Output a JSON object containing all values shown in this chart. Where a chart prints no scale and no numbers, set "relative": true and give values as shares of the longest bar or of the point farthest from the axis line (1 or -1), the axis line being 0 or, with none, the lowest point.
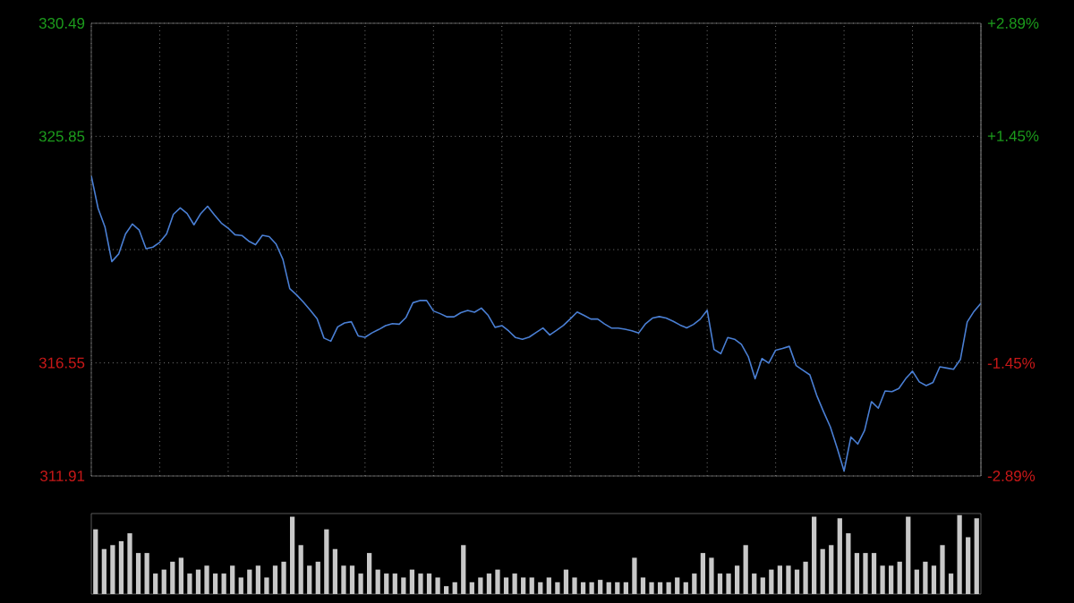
{
  "chart_data": [
    {
      "type": "line",
      "color": "#4a7fd4",
      "categories": [
        null,
        null,
        null,
        null,
        null,
        null,
        null,
        null,
        null,
        null,
        null,
        null,
        null,
        null,
        null,
        null,
        null,
        null,
        null,
        null,
        null,
        null,
        null,
        null,
        null,
        null,
        null,
        null,
        null,
        null,
        null,
        null,
        null,
        null,
        null,
        null,
        null,
        null,
        null,
        null,
        null,
        null,
        null,
        null,
        null,
        null,
        null,
        null,
        null,
        null,
        null,
        null,
        null,
        null,
        null,
        null,
        null,
        null,
        null,
        null,
        null,
        null,
        null,
        null,
        null,
        null,
        null,
        null,
        null,
        null,
        null,
        null,
        null,
        null,
        null,
        null,
        null,
        null,
        null,
        null,
        null,
        null,
        null,
        null,
        null,
        null,
        null,
        null,
        null,
        null,
        null,
        null,
        null,
        null,
        null,
        null,
        null,
        null,
        null,
        null,
        null,
        null,
        null,
        null,
        null,
        null,
        null,
        null,
        null,
        null,
        null,
        null,
        null,
        null,
        null,
        null,
        null,
        null,
        null,
        null,
        null,
        null,
        null,
        null,
        null,
        null,
        null,
        null,
        null,
        null,
        null
      ],
      "values": [
        324.22,
        322.89,
        322.13,
        320.71,
        321.02,
        321.84,
        322.25,
        322.0,
        321.24,
        321.3,
        321.5,
        321.84,
        322.65,
        322.91,
        322.68,
        322.22,
        322.68,
        322.98,
        322.62,
        322.29,
        322.08,
        321.81,
        321.78,
        321.55,
        321.4,
        321.79,
        321.73,
        321.43,
        320.8,
        319.6,
        319.34,
        319.04,
        318.71,
        318.36,
        317.57,
        317.44,
        318.03,
        318.19,
        318.24,
        317.66,
        317.6,
        317.78,
        317.92,
        318.08,
        318.16,
        318.14,
        318.42,
        319.02,
        319.11,
        319.11,
        318.68,
        318.57,
        318.44,
        318.44,
        318.61,
        318.7,
        318.63,
        318.8,
        318.5,
        318.01,
        318.08,
        317.86,
        317.59,
        317.52,
        317.61,
        317.8,
        317.98,
        317.7,
        317.89,
        318.09,
        318.36,
        318.64,
        318.5,
        318.35,
        318.35,
        318.15,
        317.98,
        317.98,
        317.93,
        317.87,
        317.78,
        318.16,
        318.39,
        318.45,
        318.39,
        318.26,
        318.11,
        317.99,
        318.13,
        318.35,
        318.71,
        317.1,
        316.93,
        317.59,
        317.52,
        317.31,
        316.81,
        315.9,
        316.73,
        316.54,
        317.07,
        317.14,
        317.23,
        316.44,
        316.25,
        316.06,
        315.22,
        314.55,
        313.92,
        313.05,
        312.11,
        313.51,
        313.22,
        313.78,
        314.96,
        314.69,
        315.4,
        315.37,
        315.5,
        315.9,
        316.21,
        315.77,
        315.62,
        315.75,
        316.39,
        316.34,
        316.29,
        316.69,
        318.23,
        318.67,
        319.0
      ],
      "ylim": [
        311.91,
        330.49
      ],
      "yticks": [
        311.91,
        316.55,
        {
          "value": 321.2,
          "label": null
        },
        325.85,
        330.49
      ],
      "y2lim": [
        -2.89,
        2.89
      ],
      "y2ticks": [
        {
          "value": -2.89,
          "label": "-2.89%"
        },
        {
          "value": -1.45,
          "label": "-1.45%"
        },
        {
          "value": 1.45,
          "label": "+1.45%"
        },
        {
          "value": 2.89,
          "label": "+2.89%"
        }
      ],
      "grid": true
    },
    {
      "type": "bar",
      "color": "#c8c8c8",
      "relative": true,
      "categories": [
        null,
        null,
        null,
        null,
        null,
        null,
        null,
        null,
        null,
        null,
        null,
        null,
        null,
        null,
        null,
        null,
        null,
        null,
        null,
        null,
        null,
        null,
        null,
        null,
        null,
        null,
        null,
        null,
        null,
        null,
        null,
        null,
        null,
        null,
        null,
        null,
        null,
        null,
        null,
        null,
        null,
        null,
        null,
        null,
        null,
        null,
        null,
        null,
        null,
        null,
        null,
        null,
        null,
        null,
        null,
        null,
        null,
        null,
        null,
        null,
        null,
        null,
        null,
        null,
        null,
        null,
        null,
        null,
        null,
        null,
        null,
        null,
        null,
        null,
        null,
        null,
        null,
        null,
        null,
        null,
        null,
        null,
        null,
        null,
        null,
        null,
        null,
        null,
        null,
        null,
        null,
        null,
        null,
        null,
        null,
        null,
        null,
        null,
        null,
        null,
        null,
        null,
        null,
        null
      ],
      "values": [
        0.82,
        0.57,
        0.62,
        0.67,
        0.77,
        0.52,
        0.52,
        0.26,
        0.31,
        0.41,
        0.46,
        0.26,
        0.31,
        0.36,
        0.26,
        0.26,
        0.36,
        0.21,
        0.31,
        0.36,
        0.21,
        0.36,
        0.41,
        0.98,
        0.62,
        0.36,
        0.41,
        0.82,
        0.57,
        0.36,
        0.36,
        0.26,
        0.52,
        0.31,
        0.26,
        0.26,
        0.21,
        0.31,
        0.26,
        0.26,
        0.21,
        0.1,
        0.15,
        0.62,
        0.15,
        0.21,
        0.26,
        0.31,
        0.21,
        0.26,
        0.21,
        0.21,
        0.15,
        0.21,
        0.15,
        0.31,
        0.21,
        0.15,
        0.15,
        0.18,
        0.15,
        0.15,
        0.15,
        0.46,
        0.21,
        0.15,
        0.15,
        0.15,
        0.21,
        0.15,
        0.26,
        0.52,
        0.46,
        0.26,
        0.26,
        0.36,
        0.62,
        0.26,
        0.21,
        0.31,
        0.36,
        0.36,
        0.31,
        0.41,
        0.98,
        0.57,
        0.62,
        0.96,
        0.77,
        0.52,
        0.52,
        0.52,
        0.36,
        0.36,
        0.41,
        0.98,
        0.31,
        0.41,
        0.36,
        0.62,
        0.26,
        1,
        0.72,
        0.96
      ]
    }
  ]
}
